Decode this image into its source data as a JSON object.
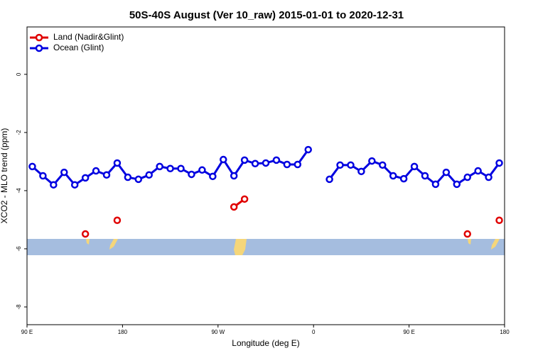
{
  "chart_data": {
    "type": "line",
    "title": "50S-40S August (Ver 10_raw)   2015-01-01 to 2020-12-31",
    "xlabel": "Longitude (deg E)",
    "ylabel": "XCO2 - MLO trend (ppm)",
    "x": [
      95,
      105,
      115,
      125,
      135,
      145,
      155,
      165,
      175,
      185,
      195,
      205,
      215,
      225,
      235,
      245,
      255,
      265,
      275,
      285,
      295,
      305,
      315,
      325,
      335,
      345,
      355,
      365,
      375,
      385,
      395,
      405,
      415,
      425,
      435,
      445,
      455,
      465,
      475,
      485,
      495,
      505,
      515,
      525,
      535
    ],
    "series": [
      {
        "name": "Land (Nadir&Glint)",
        "color": "#e00000",
        "values": [
          null,
          null,
          null,
          null,
          null,
          -5.49,
          null,
          null,
          -5.02,
          null,
          null,
          null,
          null,
          null,
          null,
          null,
          null,
          null,
          null,
          -4.56,
          -4.29,
          null,
          null,
          null,
          null,
          null,
          null,
          null,
          null,
          null,
          null,
          null,
          null,
          null,
          null,
          null,
          null,
          null,
          null,
          null,
          null,
          -5.49,
          null,
          null,
          -5.02
        ]
      },
      {
        "name": "Ocean (Glint)",
        "color": "#0000e0",
        "values": [
          -3.17,
          -3.49,
          -3.8,
          -3.37,
          -3.8,
          -3.56,
          -3.32,
          -3.46,
          -3.05,
          -3.54,
          -3.61,
          -3.46,
          -3.17,
          -3.24,
          -3.24,
          -3.44,
          -3.29,
          -3.51,
          -2.93,
          -3.49,
          -2.95,
          -3.07,
          -3.05,
          -2.95,
          -3.1,
          -3.1,
          -2.59,
          null,
          -3.61,
          -3.12,
          -3.12,
          -3.34,
          -2.98,
          -3.12,
          -3.49,
          -3.59,
          -3.17,
          -3.49,
          -3.78,
          -3.37,
          -3.78,
          -3.54,
          -3.32,
          -3.54,
          -3.05
        ]
      }
    ],
    "xlim": [
      90,
      540
    ],
    "xticks": [
      {
        "value": 90,
        "label": "90 E"
      },
      180,
      {
        "value": 270,
        "label": "90 W"
      },
      {
        "value": 360,
        "label": "0"
      },
      {
        "value": 450,
        "label": "90 E"
      },
      {
        "value": 540,
        "label": "180"
      }
    ],
    "ylim": [
      -8.61,
      1.63
    ],
    "yticks": [
      0,
      -2,
      -4,
      -6,
      -8
    ],
    "legend": "top-left"
  }
}
